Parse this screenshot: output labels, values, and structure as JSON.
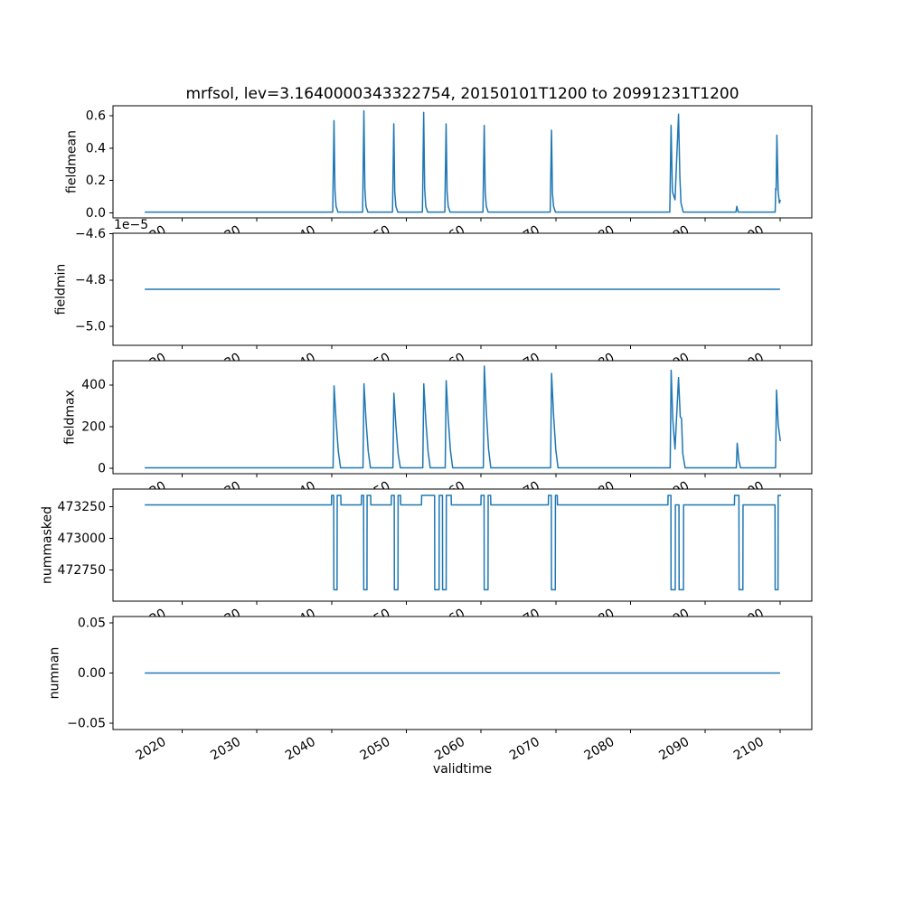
{
  "figure": {
    "background": "#ffffff",
    "line_color": "#1f77b4",
    "spine_color": "#000000"
  },
  "chart_data": {
    "type": "line",
    "title": "mrfsol, lev=3.1640000343322754, 20150101T1200 to 20991231T1200",
    "xlabel": "validtime",
    "grid": false,
    "legend": "none",
    "x_axis": {
      "xlim": [
        2010.75,
        2104.25
      ],
      "tick_values": [
        2020,
        2030,
        2040,
        2050,
        2060,
        2070,
        2080,
        2090,
        2100
      ],
      "tick_labels": [
        "2020",
        "2030",
        "2040",
        "2050",
        "2060",
        "2070",
        "2080",
        "2090",
        "2100"
      ],
      "tick_rotation_deg": 30
    },
    "subplots": [
      {
        "name": "fieldmean",
        "ylabel": "fieldmean",
        "ylim": [
          -0.0315,
          0.6615
        ],
        "ytick_values": [
          0.0,
          0.2,
          0.4,
          0.6
        ],
        "ytick_labels": [
          "0.0",
          "0.2",
          "0.4",
          "0.6"
        ],
        "offset_text": "",
        "points": [
          [
            2015.0,
            0.004
          ],
          [
            2040.15,
            0.004
          ],
          [
            2040.32,
            0.57
          ],
          [
            2040.45,
            0.14
          ],
          [
            2040.6,
            0.04
          ],
          [
            2040.85,
            0.004
          ],
          [
            2044.15,
            0.004
          ],
          [
            2044.32,
            0.63
          ],
          [
            2044.45,
            0.15
          ],
          [
            2044.6,
            0.04
          ],
          [
            2044.85,
            0.004
          ],
          [
            2048.15,
            0.004
          ],
          [
            2048.32,
            0.55
          ],
          [
            2048.45,
            0.13
          ],
          [
            2048.6,
            0.04
          ],
          [
            2048.85,
            0.004
          ],
          [
            2052.15,
            0.004
          ],
          [
            2052.32,
            0.62
          ],
          [
            2052.45,
            0.15
          ],
          [
            2052.6,
            0.04
          ],
          [
            2052.85,
            0.004
          ],
          [
            2055.15,
            0.004
          ],
          [
            2055.32,
            0.55
          ],
          [
            2055.45,
            0.13
          ],
          [
            2055.6,
            0.04
          ],
          [
            2055.85,
            0.004
          ],
          [
            2060.25,
            0.004
          ],
          [
            2060.42,
            0.54
          ],
          [
            2060.55,
            0.13
          ],
          [
            2060.7,
            0.04
          ],
          [
            2060.95,
            0.004
          ],
          [
            2069.25,
            0.004
          ],
          [
            2069.42,
            0.51
          ],
          [
            2069.55,
            0.12
          ],
          [
            2069.7,
            0.04
          ],
          [
            2069.95,
            0.004
          ],
          [
            2085.25,
            0.004
          ],
          [
            2085.42,
            0.54
          ],
          [
            2085.6,
            0.13
          ],
          [
            2085.95,
            0.08
          ],
          [
            2086.42,
            0.61
          ],
          [
            2086.6,
            0.22
          ],
          [
            2086.75,
            0.06
          ],
          [
            2087.05,
            0.004
          ],
          [
            2094.1,
            0.004
          ],
          [
            2094.22,
            0.04
          ],
          [
            2094.4,
            0.004
          ],
          [
            2099.35,
            0.004
          ],
          [
            2099.42,
            0.15
          ],
          [
            2099.48,
            0.14
          ],
          [
            2099.58,
            0.48
          ],
          [
            2099.75,
            0.13
          ],
          [
            2099.92,
            0.06
          ],
          [
            2100.05,
            0.08
          ]
        ]
      },
      {
        "name": "fieldmin",
        "ylabel": "fieldmin",
        "value_scale_note": "values in units of 1e-5",
        "ylim": [
          -5.082,
          -4.598
        ],
        "ytick_values": [
          -4.6,
          -4.8,
          -5.0
        ],
        "ytick_labels": [
          "−4.6",
          "−4.8",
          "−5.0"
        ],
        "offset_text": "1e−5",
        "points": [
          [
            2015.0,
            -4.84
          ],
          [
            2100.0,
            -4.84
          ]
        ]
      },
      {
        "name": "fieldmax",
        "ylabel": "fieldmax",
        "ylim": [
          -26,
          516
        ],
        "ytick_values": [
          0,
          200,
          400
        ],
        "ytick_labels": [
          "0",
          "200",
          "400"
        ],
        "offset_text": "",
        "points": [
          [
            2015.0,
            2
          ],
          [
            2040.2,
            2
          ],
          [
            2040.33,
            395
          ],
          [
            2040.6,
            228
          ],
          [
            2040.9,
            80
          ],
          [
            2041.2,
            2
          ],
          [
            2044.2,
            2
          ],
          [
            2044.33,
            405
          ],
          [
            2044.6,
            233
          ],
          [
            2044.9,
            82
          ],
          [
            2045.2,
            2
          ],
          [
            2048.2,
            2
          ],
          [
            2048.33,
            360
          ],
          [
            2048.6,
            205
          ],
          [
            2048.9,
            70
          ],
          [
            2049.2,
            2
          ],
          [
            2052.2,
            2
          ],
          [
            2052.33,
            405
          ],
          [
            2052.6,
            233
          ],
          [
            2052.9,
            82
          ],
          [
            2053.2,
            2
          ],
          [
            2055.2,
            2
          ],
          [
            2055.33,
            420
          ],
          [
            2055.6,
            240
          ],
          [
            2055.9,
            85
          ],
          [
            2056.2,
            2
          ],
          [
            2060.3,
            2
          ],
          [
            2060.43,
            490
          ],
          [
            2060.7,
            272
          ],
          [
            2061.0,
            92
          ],
          [
            2061.3,
            2
          ],
          [
            2069.3,
            2
          ],
          [
            2069.43,
            455
          ],
          [
            2069.7,
            255
          ],
          [
            2070.0,
            87
          ],
          [
            2070.3,
            2
          ],
          [
            2085.3,
            2
          ],
          [
            2085.43,
            470
          ],
          [
            2085.65,
            235
          ],
          [
            2085.95,
            92
          ],
          [
            2086.42,
            435
          ],
          [
            2086.65,
            248
          ],
          [
            2086.82,
            238
          ],
          [
            2086.98,
            72
          ],
          [
            2087.3,
            2
          ],
          [
            2094.15,
            2
          ],
          [
            2094.27,
            120
          ],
          [
            2094.5,
            35
          ],
          [
            2094.72,
            2
          ],
          [
            2099.4,
            2
          ],
          [
            2099.53,
            375
          ],
          [
            2099.75,
            212
          ],
          [
            2100.05,
            130
          ]
        ]
      },
      {
        "name": "nummasked",
        "ylabel": "nummasked",
        "ylim": [
          472505,
          473390
        ],
        "ytick_values": [
          472750,
          473000,
          473250
        ],
        "ytick_labels": [
          "472750",
          "473000",
          "473250"
        ],
        "offset_text": "",
        "points": [
          [
            2015.0,
            473265
          ],
          [
            2039.98,
            473265
          ],
          [
            2040.0,
            473340
          ],
          [
            2040.28,
            473340
          ],
          [
            2040.3,
            472595
          ],
          [
            2040.73,
            472595
          ],
          [
            2040.75,
            473340
          ],
          [
            2041.23,
            473340
          ],
          [
            2041.25,
            473265
          ],
          [
            2043.98,
            473265
          ],
          [
            2044.0,
            473340
          ],
          [
            2044.28,
            473340
          ],
          [
            2044.3,
            472595
          ],
          [
            2044.73,
            472595
          ],
          [
            2044.75,
            473340
          ],
          [
            2045.23,
            473340
          ],
          [
            2045.25,
            473265
          ],
          [
            2047.98,
            473265
          ],
          [
            2048.0,
            473340
          ],
          [
            2048.38,
            473340
          ],
          [
            2048.4,
            472595
          ],
          [
            2048.88,
            472595
          ],
          [
            2048.9,
            473340
          ],
          [
            2049.23,
            473340
          ],
          [
            2049.25,
            473265
          ],
          [
            2052.03,
            473265
          ],
          [
            2052.05,
            473340
          ],
          [
            2053.78,
            473340
          ],
          [
            2053.8,
            472595
          ],
          [
            2054.38,
            472595
          ],
          [
            2054.4,
            473340
          ],
          [
            2054.83,
            473340
          ],
          [
            2054.85,
            472595
          ],
          [
            2055.33,
            472595
          ],
          [
            2055.35,
            473340
          ],
          [
            2056.0,
            473340
          ],
          [
            2056.02,
            473265
          ],
          [
            2059.98,
            473265
          ],
          [
            2060.0,
            473340
          ],
          [
            2060.4,
            473340
          ],
          [
            2060.42,
            472595
          ],
          [
            2060.93,
            472595
          ],
          [
            2060.95,
            473340
          ],
          [
            2061.28,
            473340
          ],
          [
            2061.3,
            473265
          ],
          [
            2069.0,
            473265
          ],
          [
            2069.02,
            473340
          ],
          [
            2069.4,
            473340
          ],
          [
            2069.42,
            472595
          ],
          [
            2069.93,
            472595
          ],
          [
            2069.95,
            473340
          ],
          [
            2070.2,
            473340
          ],
          [
            2070.22,
            473265
          ],
          [
            2085.0,
            473265
          ],
          [
            2085.02,
            473340
          ],
          [
            2085.4,
            473340
          ],
          [
            2085.42,
            472595
          ],
          [
            2085.98,
            472595
          ],
          [
            2086.0,
            473265
          ],
          [
            2086.48,
            473265
          ],
          [
            2086.5,
            472595
          ],
          [
            2087.08,
            472595
          ],
          [
            2087.1,
            473265
          ],
          [
            2093.9,
            473265
          ],
          [
            2093.92,
            473340
          ],
          [
            2094.5,
            473340
          ],
          [
            2094.52,
            472595
          ],
          [
            2095.03,
            472595
          ],
          [
            2095.05,
            473265
          ],
          [
            2099.33,
            473265
          ],
          [
            2099.35,
            472595
          ],
          [
            2099.73,
            472595
          ],
          [
            2099.75,
            473340
          ],
          [
            2100.15,
            473340
          ]
        ]
      },
      {
        "name": "numnan",
        "ylabel": "numnan",
        "ylim": [
          -0.0565,
          0.0565
        ],
        "ytick_values": [
          -0.05,
          0.0,
          0.05
        ],
        "ytick_labels": [
          "−0.05",
          "0.00",
          "0.05"
        ],
        "offset_text": "",
        "points": [
          [
            2015.0,
            0.0
          ],
          [
            2100.0,
            0.0
          ]
        ]
      }
    ]
  }
}
